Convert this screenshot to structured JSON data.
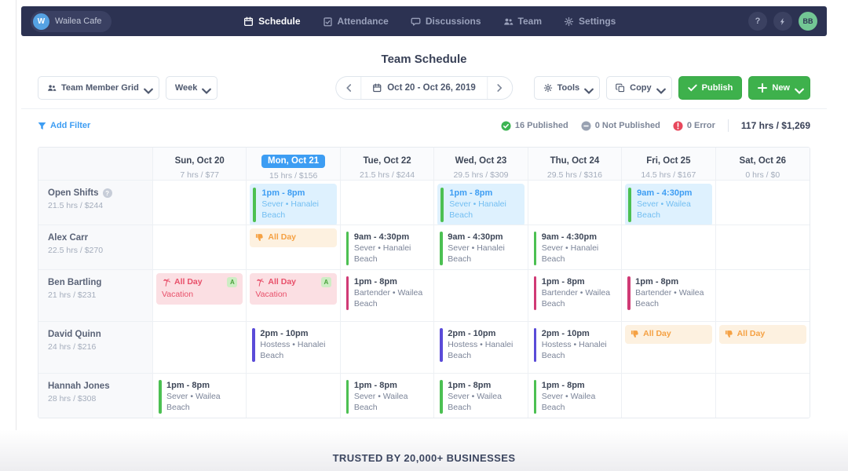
{
  "nav": {
    "company_initial": "W",
    "company_name": "Wailea Cafe",
    "items": [
      {
        "label": "Schedule",
        "icon": "calendar-icon",
        "active": true
      },
      {
        "label": "Attendance",
        "icon": "clipboard-check-icon",
        "active": false
      },
      {
        "label": "Discussions",
        "icon": "chat-icon",
        "active": false
      },
      {
        "label": "Team",
        "icon": "team-icon",
        "active": false
      },
      {
        "label": "Settings",
        "icon": "gear-icon",
        "active": false
      }
    ],
    "help_glyph": "?",
    "user_initials": "BB"
  },
  "header": {
    "title": "Team Schedule"
  },
  "toolbar": {
    "view_selector_label": "Team Member Grid",
    "period_selector_label": "Week",
    "date_range": "Oct 20 - Oct 26, 2019",
    "tools_label": "Tools",
    "copy_label": "Copy",
    "publish_label": "Publish",
    "new_label": "New"
  },
  "filter_bar": {
    "add_filter_label": "Add Filter",
    "published": "16 Published",
    "not_published": "0 Not Published",
    "error": "0 Error",
    "totals": "117 hrs / $1,269"
  },
  "colors": {
    "nav_bg": "#2c3252",
    "accent_blue": "#3d9df3",
    "button_green": "#3eb14c",
    "sever_bar": "#4cc052",
    "bartender_bar": "#d03a75",
    "hostess_bar": "#5a4bd8",
    "unavailable_orange": "#f5a143",
    "vacation_red": "#e8506a",
    "open_shift_bg": "#def1fe"
  },
  "schedule": {
    "days": [
      {
        "label": "Sun, Oct 20",
        "sub": "7 hrs / $77",
        "active": false
      },
      {
        "label": "Mon, Oct 21",
        "sub": "15 hrs / $156",
        "active": true
      },
      {
        "label": "Tue, Oct 22",
        "sub": "21.5 hrs / $244",
        "active": false
      },
      {
        "label": "Wed, Oct 23",
        "sub": "29.5 hrs / $309",
        "active": false
      },
      {
        "label": "Thu, Oct 24",
        "sub": "29.5 hrs / $316",
        "active": false
      },
      {
        "label": "Fri, Oct 25",
        "sub": "14.5 hrs / $167",
        "active": false
      },
      {
        "label": "Sat, Oct 26",
        "sub": "0 hrs / $0",
        "active": false
      }
    ],
    "rows": [
      {
        "name": "Open Shifts",
        "sub": "21.5 hrs / $244",
        "info_icon": "question-circle-icon",
        "cells": [
          [],
          [
            {
              "type": "open",
              "time": "1pm - 8pm",
              "detail": "Sever • Hanalei Beach",
              "bar_color": "#4cc052"
            }
          ],
          [],
          [
            {
              "type": "open",
              "time": "1pm - 8pm",
              "detail": "Sever • Hanalei Beach",
              "bar_color": "#4cc052"
            }
          ],
          [],
          [
            {
              "type": "open",
              "time": "9am - 4:30pm",
              "detail": "Sever • Wailea Beach",
              "bar_color": "#4cc052"
            }
          ],
          []
        ]
      },
      {
        "name": "Alex Carr",
        "sub": "22.5 hrs / $270",
        "info_icon": null,
        "cells": [
          [],
          [
            {
              "type": "unavailable",
              "label": "All Day",
              "icon": "thumbs-down-icon"
            }
          ],
          [
            {
              "type": "shift",
              "time": "9am - 4:30pm",
              "detail": "Sever • Hanalei Beach",
              "bar_color": "#4cc052"
            }
          ],
          [
            {
              "type": "shift",
              "time": "9am - 4:30pm",
              "detail": "Sever • Hanalei Beach",
              "bar_color": "#4cc052"
            }
          ],
          [
            {
              "type": "shift",
              "time": "9am - 4:30pm",
              "detail": "Sever • Hanalei Beach",
              "bar_color": "#4cc052"
            }
          ],
          [],
          []
        ]
      },
      {
        "name": "Ben Bartling",
        "sub": "21 hrs / $231",
        "info_icon": null,
        "cells": [
          [
            {
              "type": "vacation",
              "label": "All Day",
              "sublabel": "Vacation",
              "icon": "palm-tree-icon",
              "badge": "A"
            }
          ],
          [
            {
              "type": "vacation",
              "label": "All Day",
              "sublabel": "Vacation",
              "icon": "palm-tree-icon",
              "badge": "A"
            }
          ],
          [
            {
              "type": "shift",
              "time": "1pm - 8pm",
              "detail": "Bartender • Wailea Beach",
              "bar_color": "#d03a75"
            }
          ],
          [],
          [
            {
              "type": "shift",
              "time": "1pm - 8pm",
              "detail": "Bartender • Wailea Beach",
              "bar_color": "#d03a75"
            }
          ],
          [
            {
              "type": "shift",
              "time": "1pm - 8pm",
              "detail": "Bartender • Wailea Beach",
              "bar_color": "#d03a75"
            }
          ],
          []
        ]
      },
      {
        "name": "David Quinn",
        "sub": "24 hrs / $216",
        "info_icon": null,
        "cells": [
          [],
          [
            {
              "type": "shift",
              "time": "2pm - 10pm",
              "detail": "Hostess • Hanalei Beach",
              "bar_color": "#5a4bd8"
            }
          ],
          [],
          [
            {
              "type": "shift",
              "time": "2pm - 10pm",
              "detail": "Hostess • Hanalei Beach",
              "bar_color": "#5a4bd8"
            }
          ],
          [
            {
              "type": "shift",
              "time": "2pm - 10pm",
              "detail": "Hostess • Hanalei Beach",
              "bar_color": "#5a4bd8"
            }
          ],
          [
            {
              "type": "unavailable",
              "label": "All Day",
              "icon": "thumbs-down-icon"
            }
          ],
          [
            {
              "type": "unavailable",
              "label": "All Day",
              "icon": "thumbs-down-icon"
            }
          ]
        ]
      },
      {
        "name": "Hannah Jones",
        "sub": "28 hrs / $308",
        "info_icon": null,
        "cells": [
          [
            {
              "type": "shift",
              "time": "1pm - 8pm",
              "detail": "Sever • Wailea Beach",
              "bar_color": "#4cc052"
            }
          ],
          [],
          [
            {
              "type": "shift",
              "time": "1pm - 8pm",
              "detail": "Sever • Wailea Beach",
              "bar_color": "#4cc052"
            }
          ],
          [
            {
              "type": "shift",
              "time": "1pm - 8pm",
              "detail": "Sever • Wailea Beach",
              "bar_color": "#4cc052"
            }
          ],
          [
            {
              "type": "shift",
              "time": "1pm - 8pm",
              "detail": "Sever • Wailea Beach",
              "bar_color": "#4cc052"
            }
          ],
          [],
          []
        ]
      }
    ]
  },
  "footer": {
    "text": "TRUSTED BY 20,000+ BUSINESSES"
  }
}
